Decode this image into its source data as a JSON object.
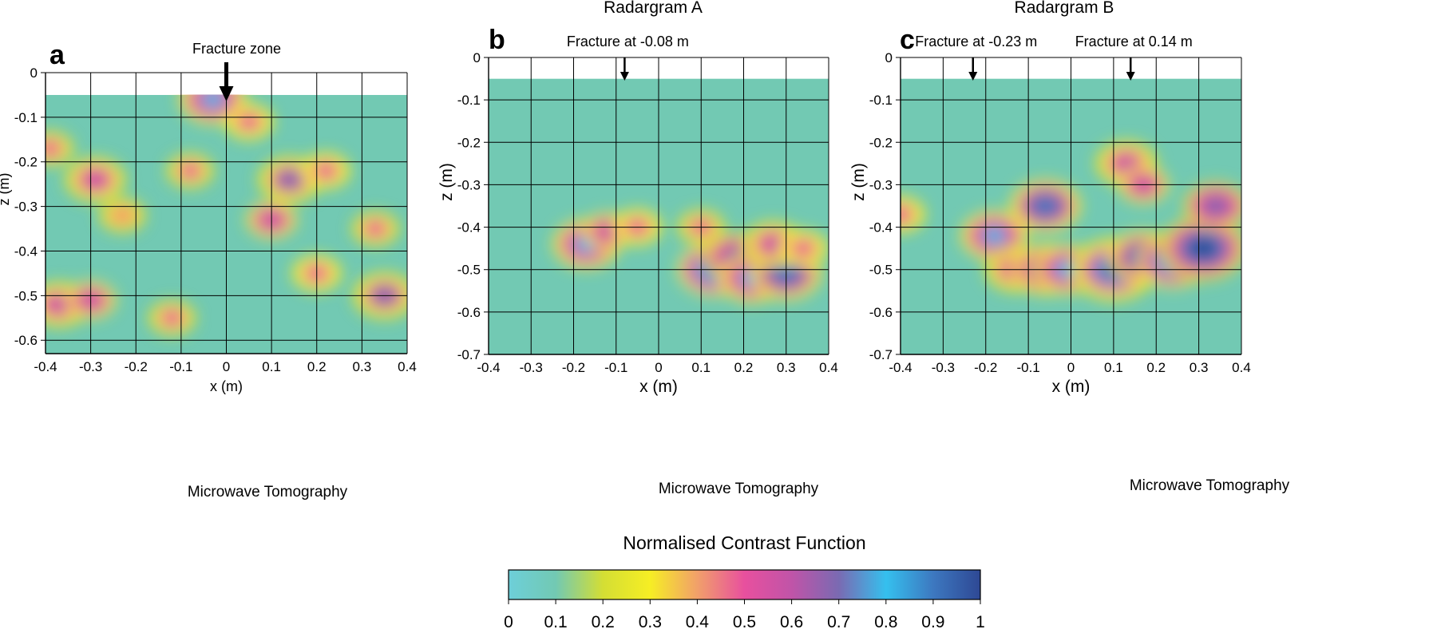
{
  "colorbar": {
    "title": "Normalised Contrast Function",
    "ticks": [
      "0",
      "0.1",
      "0.2",
      "0.3",
      "0.4",
      "0.5",
      "0.6",
      "0.7",
      "0.8",
      "0.9",
      "1"
    ],
    "stops": [
      "#6dcfd9",
      "#72c9b3",
      "#d4de34",
      "#f6ee24",
      "#f1a06a",
      "#e8509e",
      "#c054a8",
      "#7a6ab2",
      "#35c0ee",
      "#3d78c0",
      "#2e4894"
    ]
  },
  "chart_data": [
    {
      "type": "heatmap",
      "panel_label": "a",
      "title": "",
      "caption": "Microwave Tomography",
      "xlabel": "x (m)",
      "ylabel": "z (m)",
      "xlim": [
        -0.4,
        0.4
      ],
      "ylim": [
        -0.63,
        0
      ],
      "data_top": -0.05,
      "xticks": [
        "-0.4",
        "-0.3",
        "-0.2",
        "-0.1",
        "0",
        "0.1",
        "0.2",
        "0.3",
        "0.4"
      ],
      "yticks": [
        "0",
        "-0.1",
        "-0.2",
        "-0.3",
        "-0.4",
        "-0.5",
        "-0.6"
      ],
      "annotations": [
        {
          "text": "Fracture zone",
          "x": 0
        }
      ],
      "anomalies": [
        {
          "x": -0.37,
          "z": -0.52,
          "value": 0.6
        },
        {
          "x": -0.3,
          "z": -0.51,
          "value": 0.55
        },
        {
          "x": -0.29,
          "z": -0.24,
          "value": 0.58
        },
        {
          "x": -0.39,
          "z": -0.17,
          "value": 0.45
        },
        {
          "x": -0.23,
          "z": -0.32,
          "value": 0.42
        },
        {
          "x": -0.03,
          "z": -0.06,
          "value": 0.75
        },
        {
          "x": -0.08,
          "z": -0.22,
          "value": 0.45
        },
        {
          "x": 0.14,
          "z": -0.24,
          "value": 0.65
        },
        {
          "x": 0.1,
          "z": -0.33,
          "value": 0.55
        },
        {
          "x": 0.22,
          "z": -0.22,
          "value": 0.5
        },
        {
          "x": 0.2,
          "z": -0.45,
          "value": 0.5
        },
        {
          "x": 0.35,
          "z": -0.5,
          "value": 0.65
        },
        {
          "x": 0.33,
          "z": -0.35,
          "value": 0.45
        },
        {
          "x": -0.12,
          "z": -0.55,
          "value": 0.45
        },
        {
          "x": 0.05,
          "z": -0.11,
          "value": 0.5
        }
      ]
    },
    {
      "type": "heatmap",
      "panel_label": "b",
      "title": "Radargram A",
      "caption": "Microwave Tomography",
      "xlabel": "x (m)",
      "ylabel": "z (m)",
      "xlim": [
        -0.4,
        0.4
      ],
      "ylim": [
        -0.7,
        0
      ],
      "data_top": -0.05,
      "xticks": [
        "-0.4",
        "-0.3",
        "-0.2",
        "-0.1",
        "0",
        "0.1",
        "0.2",
        "0.3",
        "0.4"
      ],
      "yticks": [
        "0",
        "-0.1",
        "-0.2",
        "-0.3",
        "-0.4",
        "-0.5",
        "-0.6",
        "-0.7"
      ],
      "annotations": [
        {
          "text": "Fracture at -0.08 m",
          "x": -0.08
        }
      ],
      "anomalies": [
        {
          "x": -0.17,
          "z": -0.44,
          "value": 0.75
        },
        {
          "x": -0.12,
          "z": -0.41,
          "value": 0.55
        },
        {
          "x": -0.05,
          "z": -0.4,
          "value": 0.5
        },
        {
          "x": 0.13,
          "z": -0.5,
          "value": 0.9
        },
        {
          "x": 0.18,
          "z": -0.47,
          "value": 0.7
        },
        {
          "x": 0.22,
          "z": -0.52,
          "value": 0.75
        },
        {
          "x": 0.3,
          "z": -0.51,
          "value": 0.85
        },
        {
          "x": 0.27,
          "z": -0.44,
          "value": 0.6
        },
        {
          "x": 0.1,
          "z": -0.4,
          "value": 0.45
        },
        {
          "x": 0.34,
          "z": -0.45,
          "value": 0.5
        }
      ]
    },
    {
      "type": "heatmap",
      "panel_label": "c",
      "title": "Radargram B",
      "caption": "Microwave Tomography",
      "xlabel": "x (m)",
      "ylabel": "z (m)",
      "xlim": [
        -0.4,
        0.4
      ],
      "ylim": [
        -0.7,
        0
      ],
      "data_top": -0.05,
      "xticks": [
        "-0.4",
        "-0.3",
        "-0.2",
        "-0.1",
        "0",
        "0.1",
        "0.2",
        "0.3",
        "0.4"
      ],
      "yticks": [
        "0",
        "-0.1",
        "-0.2",
        "-0.3",
        "-0.4",
        "-0.5",
        "-0.6",
        "-0.7"
      ],
      "annotations": [
        {
          "text": "Fracture at -0.23 m",
          "x": -0.23
        },
        {
          "text": "Fracture at 0.14 m",
          "x": 0.14
        }
      ],
      "anomalies": [
        {
          "x": -0.18,
          "z": -0.42,
          "value": 0.75
        },
        {
          "x": -0.13,
          "z": -0.5,
          "value": 0.6
        },
        {
          "x": -0.06,
          "z": -0.35,
          "value": 0.85
        },
        {
          "x": -0.06,
          "z": -0.5,
          "value": 0.8
        },
        {
          "x": -0.01,
          "z": -0.5,
          "value": 0.75
        },
        {
          "x": 0.1,
          "z": -0.5,
          "value": 0.95
        },
        {
          "x": 0.17,
          "z": -0.47,
          "value": 0.85
        },
        {
          "x": 0.24,
          "z": -0.48,
          "value": 0.9
        },
        {
          "x": 0.31,
          "z": -0.45,
          "value": 1.0
        },
        {
          "x": 0.34,
          "z": -0.35,
          "value": 0.7
        },
        {
          "x": 0.13,
          "z": -0.25,
          "value": 0.6
        },
        {
          "x": 0.17,
          "z": -0.3,
          "value": 0.55
        },
        {
          "x": -0.4,
          "z": -0.37,
          "value": 0.5
        }
      ]
    }
  ]
}
